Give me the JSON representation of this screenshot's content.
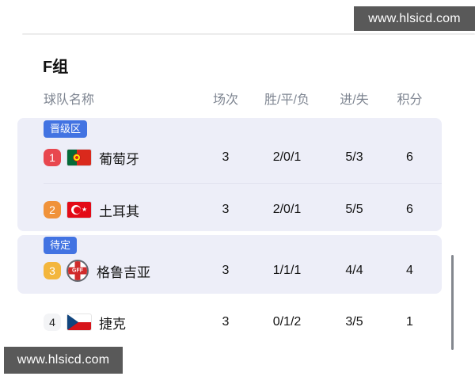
{
  "watermarks": {
    "top": "www.hlsicd.com",
    "bottom": "www.hlsicd.com"
  },
  "group_title": "F组",
  "table": {
    "headers": {
      "team": "球队名称",
      "played": "场次",
      "wdl": "胜/平/负",
      "goals": "进/失",
      "points": "积分"
    },
    "sections": [
      {
        "badge": "晋级区",
        "rows": [
          {
            "rank": "1",
            "team": "葡萄牙",
            "flag": "portugal",
            "played": "3",
            "wdl": "2/0/1",
            "goals": "5/3",
            "points": "6"
          },
          {
            "rank": "2",
            "team": "土耳其",
            "flag": "turkey",
            "played": "3",
            "wdl": "2/0/1",
            "goals": "5/5",
            "points": "6"
          }
        ]
      },
      {
        "badge": "待定",
        "rows": [
          {
            "rank": "3",
            "team": "格鲁吉亚",
            "flag": "georgia-crest",
            "crest_text": "GFF",
            "played": "3",
            "wdl": "1/1/1",
            "goals": "4/4",
            "points": "4"
          }
        ]
      },
      {
        "badge": "",
        "rows": [
          {
            "rank": "4",
            "team": "捷克",
            "flag": "czech",
            "played": "3",
            "wdl": "0/1/2",
            "goals": "3/5",
            "points": "1"
          }
        ]
      }
    ]
  },
  "colors": {
    "rank1": "#e8474f",
    "rank2": "#f0923a",
    "rank3": "#f3b63d",
    "rank4_bg": "#f3f4f6",
    "zone_badge": "#4273e2",
    "zone_bg": "#edeef8",
    "watermark_bg": "#595959",
    "portugal_green": "#046a38",
    "portugal_red": "#da291c",
    "turkey_red": "#e30a17",
    "czech_blue": "#11457e",
    "czech_red": "#d7141a",
    "georgia_red": "#d02b2b"
  }
}
